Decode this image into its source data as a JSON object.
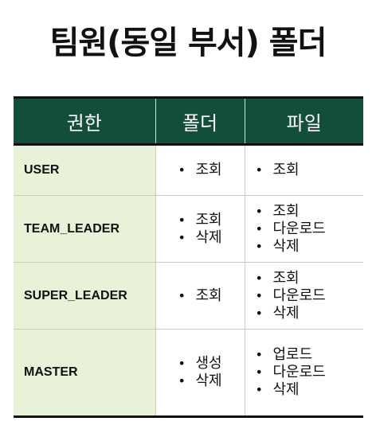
{
  "title": "팀원(동일 부서) 폴더",
  "headers": {
    "role": "권한",
    "folder": "폴더",
    "file": "파일"
  },
  "bullet": "•",
  "rows": [
    {
      "role": "USER",
      "folder": [
        "조회"
      ],
      "file": [
        "조회"
      ]
    },
    {
      "role": "TEAM_LEADER",
      "folder": [
        "조회",
        "삭제"
      ],
      "file": [
        "조회",
        "다운로드",
        "삭제"
      ]
    },
    {
      "role": "SUPER_LEADER",
      "folder": [
        "조회"
      ],
      "file": [
        "조회",
        "다운로드",
        "삭제"
      ]
    },
    {
      "role": "MASTER",
      "folder": [
        "생성",
        "삭제"
      ],
      "file": [
        "업로드",
        "다운로드",
        "삭제"
      ]
    }
  ],
  "colors": {
    "header_bg": "#134e3c",
    "role_bg": "#e8f2d9"
  }
}
